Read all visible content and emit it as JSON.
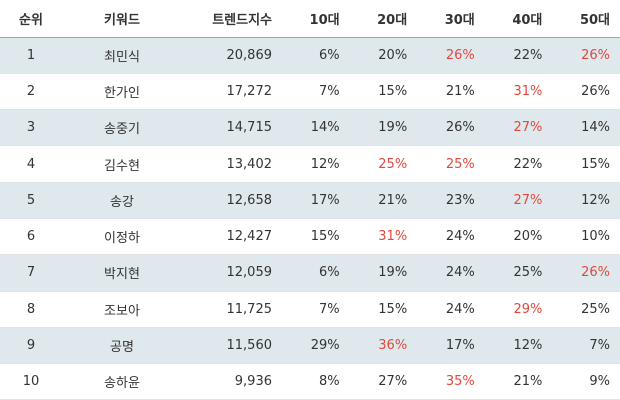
{
  "headers": [
    "순위",
    "키워드",
    "트렌드지수",
    "10대",
    "20대",
    "30대",
    "40대",
    "50대"
  ],
  "highlight_color": "#e2483e",
  "shaded_row_color": "#dfe8ec",
  "rows": [
    {
      "cells": [
        "1",
        "최민식",
        "20,869",
        "6%",
        "20%",
        "26%",
        "22%",
        "26%"
      ],
      "highlight": [
        false,
        false,
        false,
        false,
        false,
        true,
        false,
        true
      ]
    },
    {
      "cells": [
        "2",
        "한가인",
        "17,272",
        "7%",
        "15%",
        "21%",
        "31%",
        "26%"
      ],
      "highlight": [
        false,
        false,
        false,
        false,
        false,
        false,
        true,
        false
      ]
    },
    {
      "cells": [
        "3",
        "송중기",
        "14,715",
        "14%",
        "19%",
        "26%",
        "27%",
        "14%"
      ],
      "highlight": [
        false,
        false,
        false,
        false,
        false,
        false,
        true,
        false
      ]
    },
    {
      "cells": [
        "4",
        "김수현",
        "13,402",
        "12%",
        "25%",
        "25%",
        "22%",
        "15%"
      ],
      "highlight": [
        false,
        false,
        false,
        false,
        true,
        true,
        false,
        false
      ]
    },
    {
      "cells": [
        "5",
        "송강",
        "12,658",
        "17%",
        "21%",
        "23%",
        "27%",
        "12%"
      ],
      "highlight": [
        false,
        false,
        false,
        false,
        false,
        false,
        true,
        false
      ]
    },
    {
      "cells": [
        "6",
        "이정하",
        "12,427",
        "15%",
        "31%",
        "24%",
        "20%",
        "10%"
      ],
      "highlight": [
        false,
        false,
        false,
        false,
        true,
        false,
        false,
        false
      ]
    },
    {
      "cells": [
        "7",
        "박지현",
        "12,059",
        "6%",
        "19%",
        "24%",
        "25%",
        "26%"
      ],
      "highlight": [
        false,
        false,
        false,
        false,
        false,
        false,
        false,
        true
      ]
    },
    {
      "cells": [
        "8",
        "조보아",
        "11,725",
        "7%",
        "15%",
        "24%",
        "29%",
        "25%"
      ],
      "highlight": [
        false,
        false,
        false,
        false,
        false,
        false,
        true,
        false
      ]
    },
    {
      "cells": [
        "9",
        "공명",
        "11,560",
        "29%",
        "36%",
        "17%",
        "12%",
        "7%"
      ],
      "highlight": [
        false,
        false,
        false,
        false,
        true,
        false,
        false,
        false
      ]
    },
    {
      "cells": [
        "10",
        "송하윤",
        "9,936",
        "8%",
        "27%",
        "35%",
        "21%",
        "9%"
      ],
      "highlight": [
        false,
        false,
        false,
        false,
        false,
        true,
        false,
        false
      ]
    }
  ]
}
